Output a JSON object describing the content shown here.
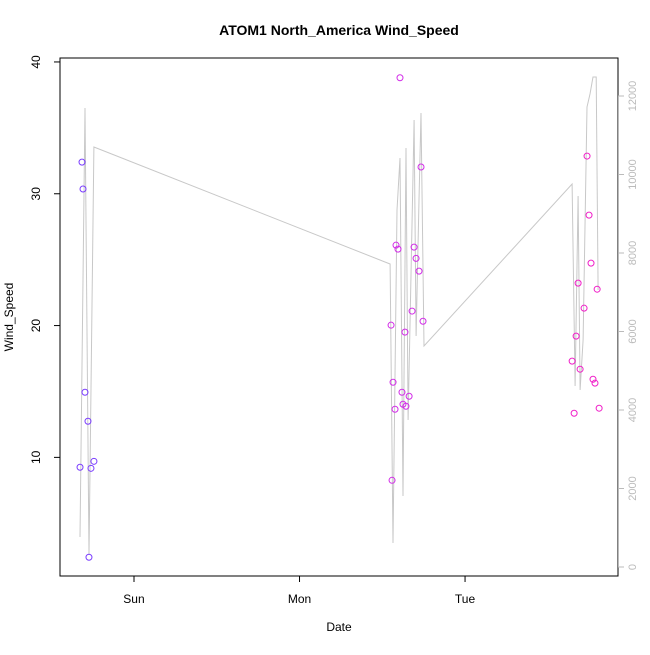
{
  "chart_data": {
    "type": "scatter",
    "title": "ATOM1 North_America Wind_Speed",
    "xlabel": "Date",
    "ylabel": "Wind_Speed",
    "xlim": [
      -0.447,
      2.924
    ],
    "ylim": [
      1.0,
      40.3
    ],
    "y2lim": [
      -229,
      12968
    ],
    "xticks": [
      {
        "value": 0,
        "label": "Sun"
      },
      {
        "value": 1,
        "label": "Mon"
      },
      {
        "value": 2,
        "label": "Tue"
      }
    ],
    "yticks": [
      10,
      20,
      30,
      40
    ],
    "y2ticks": [
      0,
      2000,
      4000,
      6000,
      8000,
      10000,
      12000
    ],
    "y2_color": "#bbbbbb",
    "points": {
      "x": [
        -0.326,
        -0.314,
        -0.308,
        -0.296,
        -0.278,
        -0.272,
        -0.26,
        -0.242,
        1.553,
        1.559,
        1.565,
        1.577,
        1.583,
        1.595,
        1.607,
        1.619,
        1.625,
        1.637,
        1.643,
        1.662,
        1.68,
        1.692,
        1.704,
        1.722,
        1.734,
        1.746,
        2.647,
        2.659,
        2.671,
        2.683,
        2.695,
        2.719,
        2.737,
        2.749,
        2.761,
        2.773,
        2.785,
        2.798,
        2.81
      ],
      "y": [
        9.25,
        32.4,
        30.36,
        14.94,
        12.74,
        2.42,
        9.17,
        9.7,
        20.03,
        8.26,
        15.7,
        13.65,
        26.1,
        25.8,
        38.8,
        14.94,
        14.03,
        19.5,
        13.88,
        14.64,
        21.1,
        25.95,
        25.1,
        24.13,
        32.03,
        20.33,
        17.3,
        13.35,
        19.2,
        23.22,
        16.69,
        21.32,
        32.86,
        28.38,
        24.74,
        15.93,
        15.63,
        22.76,
        13.73
      ],
      "colors": [
        "#7a3cff",
        "#7a3cff",
        "#7a3cff",
        "#7a3cff",
        "#7a3cff",
        "#7a3cff",
        "#7a3cff",
        "#7a3cff",
        "#d22ce8",
        "#d22ce8",
        "#d22ce8",
        "#d22ce8",
        "#d22ce8",
        "#d22ce8",
        "#d22ce8",
        "#d22ce8",
        "#d22ce8",
        "#d22ce8",
        "#d22ce8",
        "#d22ce8",
        "#d22ce8",
        "#d22ce8",
        "#d22ce8",
        "#d22ce8",
        "#d22ce8",
        "#d22ce8",
        "#f01ec8",
        "#f01ec8",
        "#f01ec8",
        "#f01ec8",
        "#f01ec8",
        "#f01ec8",
        "#f01ec8",
        "#f01ec8",
        "#f01ec8",
        "#f01ec8",
        "#f01ec8",
        "#f01ec8",
        "#f01ec8"
      ]
    },
    "line": {
      "axis": "y2",
      "color": "#c8c8c8",
      "x": [
        -0.326,
        -0.296,
        -0.272,
        -0.242,
        1.547,
        1.565,
        1.589,
        1.607,
        1.625,
        1.643,
        1.656,
        1.692,
        1.704,
        1.722,
        1.734,
        1.752,
        2.647,
        2.665,
        2.683,
        2.695,
        2.713,
        2.737,
        2.755,
        2.773,
        2.792,
        2.804
      ],
      "y": [
        764,
        11694,
        306,
        10700,
        7720,
        611,
        9096,
        10420,
        1809,
        10675,
        3745,
        11389,
        5885,
        9350,
        11567,
        5631,
        9758,
        4611,
        9452,
        4510,
        5783,
        11720,
        12051,
        12484,
        12484,
        7057
      ]
    }
  }
}
